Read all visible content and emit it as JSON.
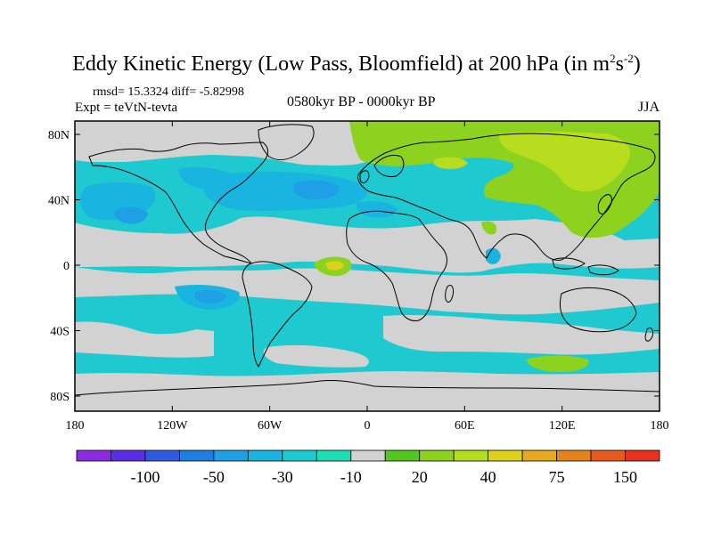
{
  "plot": {
    "title_main": "Eddy Kinetic Energy (Low Pass, Bloomfield) at 200 hPa (in m",
    "title_sup1": "2",
    "title_mid": "s",
    "title_sup2": "-2",
    "title_end": ")",
    "stats": "rmsd= 15.3324 diff= -5.82998",
    "experiment": "Expt = teVtN-tevta",
    "period": "0580kyr BP - 0000kyr BP",
    "season": "JJA"
  },
  "axes": {
    "lat_labels": [
      "80N",
      "40N",
      "0",
      "40S",
      "80S"
    ],
    "lat_values": [
      80,
      40,
      0,
      -40,
      -80
    ],
    "lon_labels": [
      "180",
      "120W",
      "60W",
      "0",
      "60E",
      "120E",
      "180"
    ],
    "lon_values": [
      -180,
      -120,
      -60,
      0,
      60,
      120,
      180
    ]
  },
  "colorbar": {
    "colors": [
      "#8a2be2",
      "#5a2ee6",
      "#2f5ae0",
      "#1e7fe0",
      "#1e9fe6",
      "#19b4e0",
      "#1ecad0",
      "#20deb4",
      "#d2d2d2",
      "#52c81e",
      "#8cd21e",
      "#b8dc1e",
      "#dcd21e",
      "#e6aa1e",
      "#e6821e",
      "#e65a1e",
      "#e6321e"
    ],
    "labels": [
      "-100",
      "-50",
      "-30",
      "-10",
      "20",
      "40",
      "75",
      "150"
    ],
    "label_after_box": [
      2,
      4,
      6,
      8,
      10,
      12,
      14,
      16
    ]
  },
  "legend_colors": {
    "land_line": "#000000",
    "neutral": "#d2d2d2",
    "neg_weak": "#1ecad0",
    "neg_mid": "#19b4e0",
    "neg_strong": "#1e9fe6",
    "pos_weak": "#8cd21e",
    "pos_mid": "#b8dc1e",
    "pos_strong": "#dcd21e"
  }
}
